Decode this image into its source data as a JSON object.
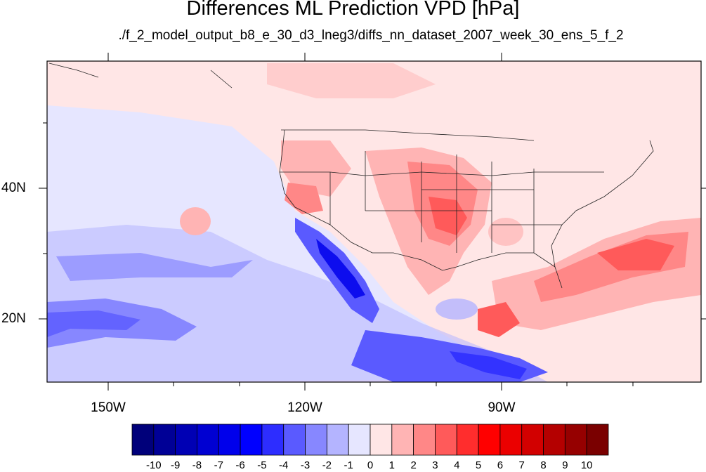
{
  "title": "Differences ML Prediction VPD [hPa]",
  "subtitle": "./f_2_model_output_b8_e_30_d3_lneg3/diffs_nn_dataset_2007_week_30_ens_5_f_2",
  "axes": {
    "lat_ticks": [
      "40N",
      "20N"
    ],
    "lon_ticks": [
      "150W",
      "120W",
      "90W"
    ]
  },
  "colorbar": {
    "labels": [
      "-10",
      "-9",
      "-8",
      "-7",
      "-6",
      "-5",
      "-4",
      "-3",
      "-2",
      "-1",
      "0",
      "1",
      "2",
      "3",
      "4",
      "5",
      "6",
      "7",
      "8",
      "9",
      "10"
    ],
    "colors": [
      "#00007a",
      "#000096",
      "#0000b4",
      "#0000d2",
      "#0000eb",
      "#0000ff",
      "#2d2dff",
      "#5a5aff",
      "#8787ff",
      "#b4b4ff",
      "#e6e6ff",
      "#ffe6e6",
      "#ffb4b4",
      "#ff8787",
      "#ff5a5a",
      "#ff2d2d",
      "#ff0000",
      "#eb0000",
      "#d20000",
      "#b40000",
      "#960000",
      "#7a0000"
    ]
  }
}
